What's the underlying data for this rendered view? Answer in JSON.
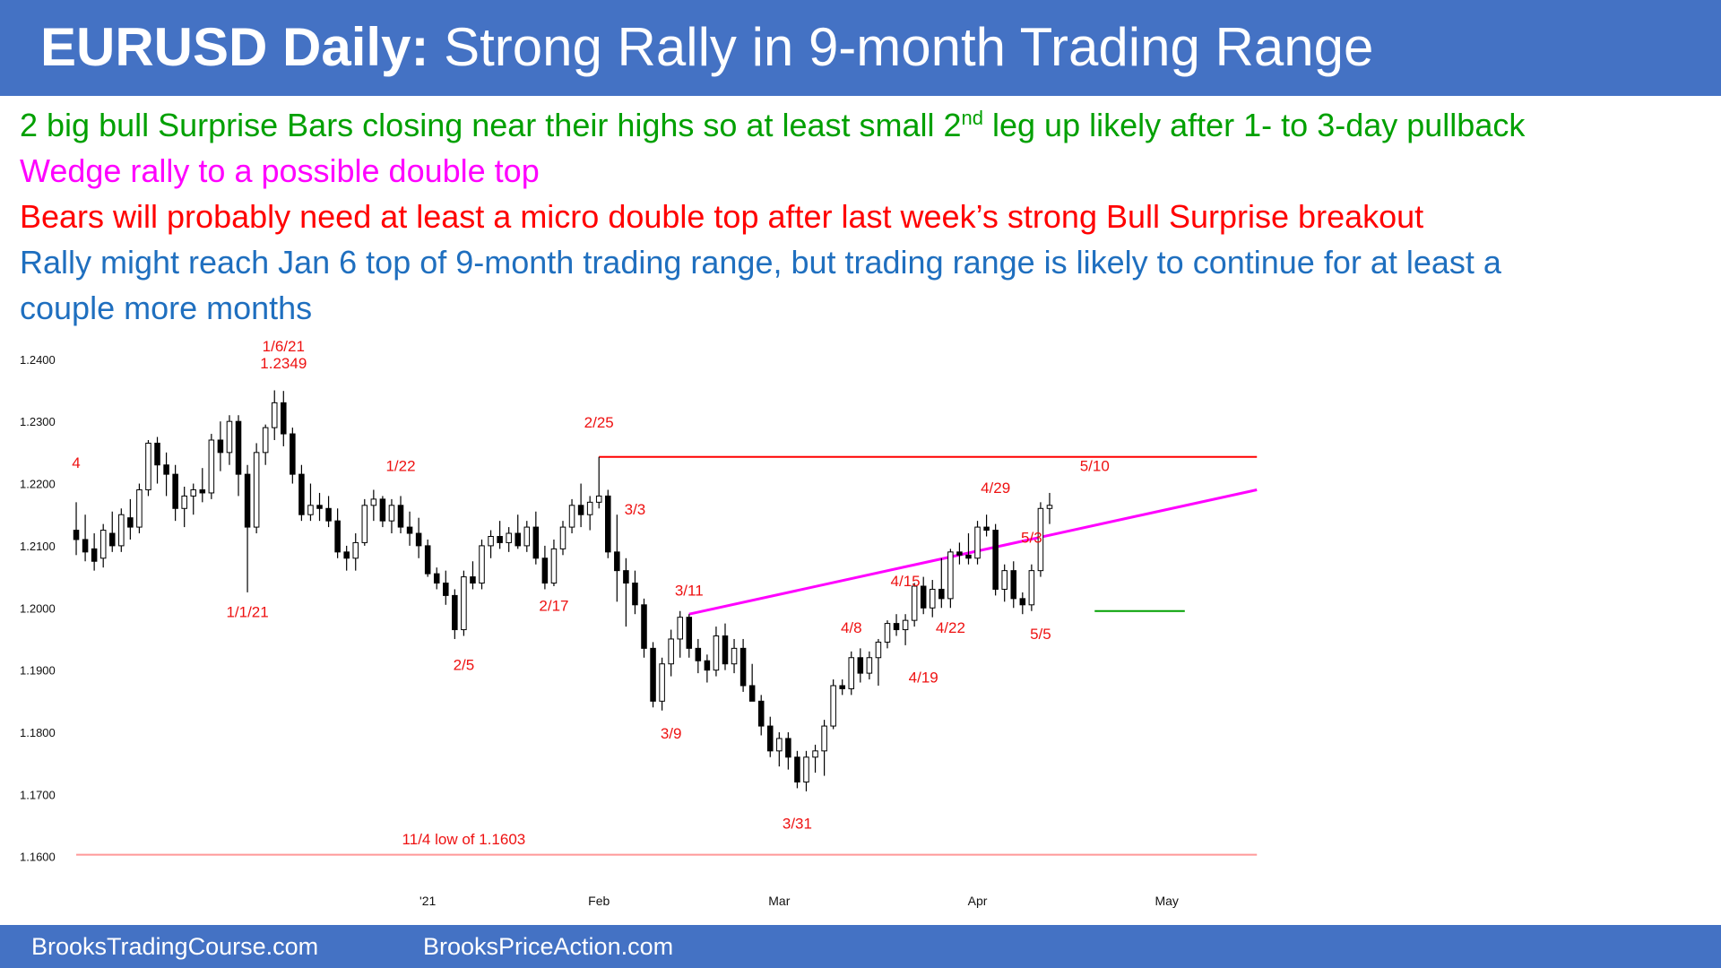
{
  "header": {
    "title_bold": "EURUSD Daily:",
    "title_rest": " Strong Rally in 9-month Trading Range"
  },
  "notes": {
    "line1_pre": "2 big bull Surprise Bars closing near their highs so at least small 2",
    "line1_sup": "nd",
    "line1_post": " leg up likely after 1- to 3-day pullback",
    "line2": "Wedge rally to a possible double top",
    "line3": "Bears will probably need at least a micro double top after last week’s strong Bull Surprise breakout",
    "line4a": "Rally might reach Jan 6 top of 9-month trading range, but trading range is likely to continue for at least a",
    "line4b": "couple more months"
  },
  "colors": {
    "header_bg": "#4472c4",
    "green": "#00a000",
    "magenta": "#ff00ff",
    "red": "#ff0000",
    "blue": "#1f6fbf",
    "annotation": "#ee1111",
    "candle": "#000000"
  },
  "footer": {
    "left": "BrooksTradingCourse.com",
    "right": "BrooksPriceAction.com"
  },
  "chart_data": {
    "type": "candlestick",
    "title": "EURUSD Daily",
    "y_ticks": [
      "1.1600",
      "1.1700",
      "1.1800",
      "1.1900",
      "1.2000",
      "1.2100",
      "1.2200",
      "1.2300",
      "1.2400"
    ],
    "ylim": [
      1.1565,
      1.243
    ],
    "x_ticks": [
      {
        "label": "'21",
        "i": 39
      },
      {
        "label": "Feb",
        "i": 58
      },
      {
        "label": "Mar",
        "i": 78
      },
      {
        "label": "Apr",
        "i": 100
      },
      {
        "label": "May",
        "i": 121
      }
    ],
    "ohlc": [
      [
        1.2125,
        1.217,
        1.2085,
        1.211
      ],
      [
        1.211,
        1.215,
        1.2075,
        1.209
      ],
      [
        1.2095,
        1.212,
        1.206,
        1.2075
      ],
      [
        1.208,
        1.2135,
        1.2065,
        1.2125
      ],
      [
        1.212,
        1.2155,
        1.209,
        1.21
      ],
      [
        1.21,
        1.216,
        1.209,
        1.215
      ],
      [
        1.2145,
        1.2175,
        1.211,
        1.213
      ],
      [
        1.213,
        1.22,
        1.212,
        1.219
      ],
      [
        1.219,
        1.227,
        1.218,
        1.2265
      ],
      [
        1.2265,
        1.2275,
        1.22,
        1.223
      ],
      [
        1.223,
        1.225,
        1.218,
        1.2215
      ],
      [
        1.2215,
        1.223,
        1.214,
        1.216
      ],
      [
        1.216,
        1.2195,
        1.213,
        1.218
      ],
      [
        1.218,
        1.22,
        1.215,
        1.219
      ],
      [
        1.219,
        1.2225,
        1.217,
        1.2185
      ],
      [
        1.2185,
        1.228,
        1.2175,
        1.227
      ],
      [
        1.227,
        1.23,
        1.222,
        1.225
      ],
      [
        1.225,
        1.231,
        1.223,
        1.23
      ],
      [
        1.23,
        1.231,
        1.218,
        1.2215
      ],
      [
        1.2215,
        1.223,
        1.2025,
        1.213
      ],
      [
        1.213,
        1.2265,
        1.212,
        1.225
      ],
      [
        1.225,
        1.2295,
        1.223,
        1.229
      ],
      [
        1.229,
        1.235,
        1.227,
        1.233
      ],
      [
        1.233,
        1.2349,
        1.226,
        1.228
      ],
      [
        1.228,
        1.229,
        1.22,
        1.2215
      ],
      [
        1.2215,
        1.223,
        1.214,
        1.215
      ],
      [
        1.215,
        1.22,
        1.214,
        1.2165
      ],
      [
        1.2165,
        1.2185,
        1.214,
        1.216
      ],
      [
        1.216,
        1.218,
        1.213,
        1.214
      ],
      [
        1.214,
        1.216,
        1.208,
        1.209
      ],
      [
        1.209,
        1.21,
        1.206,
        1.208
      ],
      [
        1.208,
        1.212,
        1.206,
        1.2105
      ],
      [
        1.2105,
        1.2175,
        1.21,
        1.2165
      ],
      [
        1.2165,
        1.219,
        1.214,
        1.2175
      ],
      [
        1.2175,
        1.218,
        1.213,
        1.214
      ],
      [
        1.214,
        1.2175,
        1.212,
        1.2165
      ],
      [
        1.2165,
        1.218,
        1.212,
        1.213
      ],
      [
        1.213,
        1.2155,
        1.21,
        1.212
      ],
      [
        1.212,
        1.2145,
        1.208,
        1.21
      ],
      [
        1.21,
        1.211,
        1.205,
        1.2055
      ],
      [
        1.2055,
        1.2065,
        1.203,
        1.204
      ],
      [
        1.204,
        1.206,
        1.2005,
        1.202
      ],
      [
        1.202,
        1.203,
        1.195,
        1.1965
      ],
      [
        1.1965,
        1.206,
        1.1955,
        1.205
      ],
      [
        1.205,
        1.2075,
        1.203,
        1.204
      ],
      [
        1.204,
        1.211,
        1.203,
        1.21
      ],
      [
        1.21,
        1.2125,
        1.208,
        1.2115
      ],
      [
        1.2115,
        1.214,
        1.2095,
        1.2105
      ],
      [
        1.2105,
        1.213,
        1.209,
        1.212
      ],
      [
        1.212,
        1.215,
        1.2095,
        1.21
      ],
      [
        1.21,
        1.214,
        1.209,
        1.213
      ],
      [
        1.213,
        1.2155,
        1.207,
        1.208
      ],
      [
        1.208,
        1.21,
        1.203,
        1.204
      ],
      [
        1.204,
        1.211,
        1.2035,
        1.2095
      ],
      [
        1.2095,
        1.214,
        1.2085,
        1.213
      ],
      [
        1.213,
        1.2175,
        1.212,
        1.2165
      ],
      [
        1.2165,
        1.22,
        1.213,
        1.215
      ],
      [
        1.215,
        1.218,
        1.2125,
        1.217
      ],
      [
        1.217,
        1.2243,
        1.216,
        1.218
      ],
      [
        1.218,
        1.219,
        1.208,
        1.209
      ],
      [
        1.209,
        1.215,
        1.201,
        1.206
      ],
      [
        1.206,
        1.208,
        1.197,
        1.204
      ],
      [
        1.204,
        1.206,
        1.199,
        1.2005
      ],
      [
        1.2005,
        1.2015,
        1.192,
        1.1935
      ],
      [
        1.1935,
        1.1945,
        1.184,
        1.185
      ],
      [
        1.185,
        1.192,
        1.1835,
        1.191
      ],
      [
        1.191,
        1.1965,
        1.189,
        1.195
      ],
      [
        1.195,
        1.1995,
        1.192,
        1.1985
      ],
      [
        1.1985,
        1.199,
        1.192,
        1.1935
      ],
      [
        1.1935,
        1.195,
        1.1895,
        1.1915
      ],
      [
        1.1915,
        1.1925,
        1.188,
        1.19
      ],
      [
        1.19,
        1.197,
        1.189,
        1.1955
      ],
      [
        1.1955,
        1.1975,
        1.19,
        1.191
      ],
      [
        1.191,
        1.195,
        1.1895,
        1.1935
      ],
      [
        1.1935,
        1.195,
        1.1865,
        1.1875
      ],
      [
        1.1875,
        1.191,
        1.185,
        1.185
      ],
      [
        1.185,
        1.186,
        1.1795,
        1.181
      ],
      [
        1.181,
        1.1825,
        1.176,
        1.177
      ],
      [
        1.177,
        1.18,
        1.1745,
        1.179
      ],
      [
        1.179,
        1.18,
        1.174,
        1.176
      ],
      [
        1.176,
        1.177,
        1.171,
        1.172
      ],
      [
        1.172,
        1.177,
        1.1705,
        1.176
      ],
      [
        1.176,
        1.178,
        1.1735,
        1.177
      ],
      [
        1.177,
        1.182,
        1.173,
        1.181
      ],
      [
        1.181,
        1.1885,
        1.1805,
        1.1875
      ],
      [
        1.1875,
        1.1885,
        1.186,
        1.187
      ],
      [
        1.187,
        1.193,
        1.186,
        1.192
      ],
      [
        1.192,
        1.1935,
        1.188,
        1.1895
      ],
      [
        1.1895,
        1.193,
        1.1885,
        1.192
      ],
      [
        1.192,
        1.195,
        1.1875,
        1.1945
      ],
      [
        1.1945,
        1.198,
        1.1935,
        1.1975
      ],
      [
        1.1975,
        1.199,
        1.1955,
        1.1965
      ],
      [
        1.1965,
        1.199,
        1.194,
        1.198
      ],
      [
        1.198,
        1.204,
        1.197,
        1.2035
      ],
      [
        1.2035,
        1.205,
        1.199,
        1.2
      ],
      [
        1.2,
        1.2045,
        1.1985,
        1.203
      ],
      [
        1.203,
        1.208,
        1.2,
        1.2015
      ],
      [
        1.2015,
        1.2095,
        1.2,
        1.209
      ],
      [
        1.209,
        1.2105,
        1.207,
        1.2085
      ],
      [
        1.2085,
        1.212,
        1.207,
        1.208
      ],
      [
        1.208,
        1.214,
        1.207,
        1.213
      ],
      [
        1.213,
        1.215,
        1.2115,
        1.2125
      ],
      [
        1.2125,
        1.2135,
        1.202,
        1.203
      ],
      [
        1.203,
        1.207,
        1.201,
        1.206
      ],
      [
        1.206,
        1.2075,
        1.2,
        1.2015
      ],
      [
        1.2015,
        1.2025,
        1.199,
        1.2005
      ],
      [
        1.2005,
        1.207,
        1.1995,
        1.206
      ],
      [
        1.206,
        1.217,
        1.205,
        1.216
      ],
      [
        1.216,
        1.2185,
        1.2135,
        1.2165
      ]
    ],
    "lines": [
      {
        "name": "2/25 high",
        "color": "red",
        "x1": 58,
        "x2": 131,
        "y1": 1.2243,
        "y2": 1.2243
      },
      {
        "name": "wedge line",
        "color": "magenta",
        "x1": 68,
        "x2": 131,
        "y1": 1.199,
        "y2": 1.219
      },
      {
        "name": "5/5 micro double bottom",
        "color": "green",
        "x1": 113,
        "x2": 123,
        "y1": 1.1995,
        "y2": 1.1995
      },
      {
        "name": "11/4 low",
        "color": "salmon",
        "x1": 0,
        "x2": 131,
        "y1": 1.1603,
        "y2": 1.1603
      }
    ],
    "annotations": [
      {
        "text": "4",
        "i": 0,
        "y": 1.2225
      },
      {
        "text": "1/6/21",
        "i": 23,
        "y": 1.2413
      },
      {
        "text": "1.2349",
        "i": 23,
        "y": 1.2385
      },
      {
        "text": "1/1/21",
        "i": 19,
        "y": 1.1985
      },
      {
        "text": "1/22",
        "i": 36,
        "y": 1.222
      },
      {
        "text": "2/5",
        "i": 43,
        "y": 1.19
      },
      {
        "text": "2/17",
        "i": 53,
        "y": 1.1995
      },
      {
        "text": "2/25",
        "i": 58,
        "y": 1.229
      },
      {
        "text": "3/3",
        "i": 62,
        "y": 1.215
      },
      {
        "text": "3/11",
        "i": 68,
        "y": 1.202
      },
      {
        "text": "3/9",
        "i": 66,
        "y": 1.179
      },
      {
        "text": "3/31",
        "i": 80,
        "y": 1.1645
      },
      {
        "text": "4/8",
        "i": 86,
        "y": 1.196
      },
      {
        "text": "4/15",
        "i": 92,
        "y": 1.2035
      },
      {
        "text": "4/19",
        "i": 94,
        "y": 1.188
      },
      {
        "text": "4/22",
        "i": 97,
        "y": 1.196
      },
      {
        "text": "4/29",
        "i": 102,
        "y": 1.2185
      },
      {
        "text": "5/3",
        "i": 106,
        "y": 1.2105
      },
      {
        "text": "5/5",
        "i": 107,
        "y": 1.195
      },
      {
        "text": "5/10",
        "i": 113,
        "y": 1.222
      },
      {
        "text": "11/4 low of 1.1603",
        "i": 43,
        "y": 1.162
      }
    ]
  }
}
